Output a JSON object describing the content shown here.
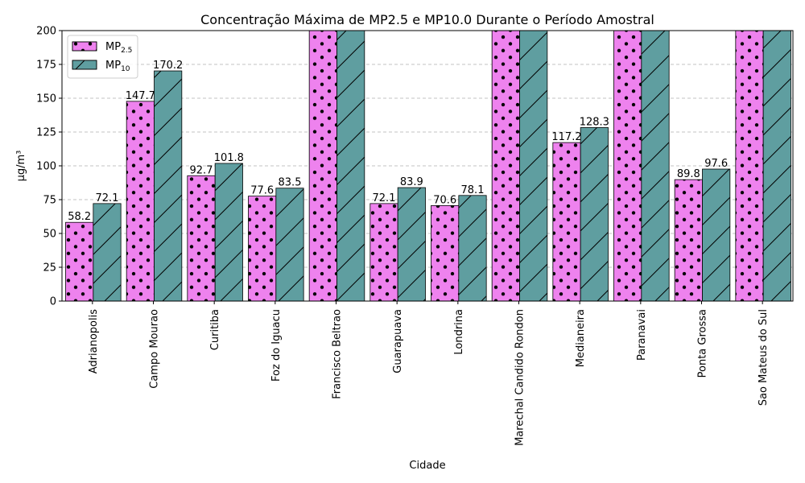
{
  "chart_data": {
    "type": "bar",
    "title": "Concentração Máxima de MP2.5 e MP10.0 Durante o Período Amostral",
    "xlabel": "Cidade",
    "ylabel": "μg/m³",
    "ylim": [
      0,
      200
    ],
    "yticks": [
      0,
      25,
      50,
      75,
      100,
      125,
      150,
      175,
      200
    ],
    "grid": "y",
    "legend_position": "top-left",
    "categories": [
      "Adrianopolis",
      "Campo Mourao",
      "Curitiba",
      "Foz do Iguacu",
      "Francisco Beltrao",
      "Guarapuava",
      "Londrina",
      "Marechal Candido Rondon",
      "Medianeira",
      "Paranavai",
      "Ponta Grossa",
      "Sao Mateus do Sul"
    ],
    "series": [
      {
        "name": "MP2.5",
        "color": "#ee82ee",
        "hatch": "dots",
        "values": [
          58.2,
          147.7,
          92.7,
          77.6,
          200,
          72.1,
          70.6,
          200,
          117.2,
          200,
          89.8,
          200
        ],
        "labels": [
          "58.2",
          "147.7",
          "92.7",
          "77.6",
          "",
          "72.1",
          "70.6",
          "",
          "117.2",
          "",
          "89.8",
          ""
        ]
      },
      {
        "name": "MP10",
        "color": "#5f9ea0",
        "hatch": "diagonal",
        "values": [
          72.1,
          170.2,
          101.8,
          83.5,
          200,
          83.9,
          78.1,
          200,
          128.3,
          200,
          97.6,
          200
        ],
        "labels": [
          "72.1",
          "170.2",
          "101.8",
          "83.5",
          "",
          "83.9",
          "78.1",
          "",
          "128.3",
          "",
          "97.6",
          ""
        ]
      }
    ]
  }
}
